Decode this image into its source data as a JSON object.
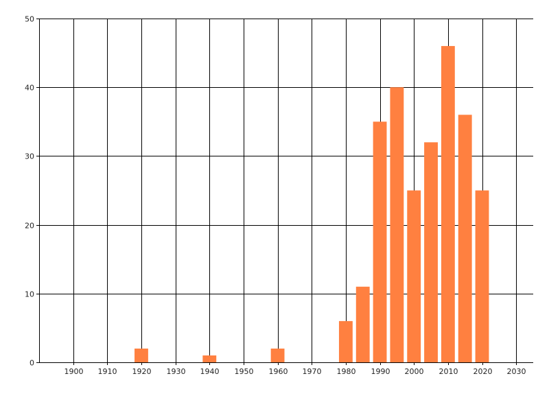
{
  "chart_data": {
    "type": "bar",
    "title": "",
    "xlabel": "",
    "ylabel": "",
    "x": [
      1920,
      1940,
      1960,
      1980,
      1985,
      1990,
      1995,
      2000,
      2005,
      2010,
      2015,
      2020
    ],
    "values": [
      2,
      1,
      2,
      6,
      11,
      35,
      40,
      25,
      32,
      46,
      36,
      25
    ],
    "xlim": [
      1890,
      2035
    ],
    "ylim": [
      0,
      50
    ],
    "x_ticks": [
      1900,
      1910,
      1920,
      1930,
      1940,
      1950,
      1960,
      1970,
      1980,
      1990,
      2000,
      2010,
      2020,
      2030
    ],
    "y_ticks": [
      0,
      10,
      20,
      30,
      40,
      50
    ],
    "bar_width_years": 4,
    "grid": true,
    "legend": "none",
    "bar_color": "#FF8040",
    "grid_color": "#000000"
  }
}
